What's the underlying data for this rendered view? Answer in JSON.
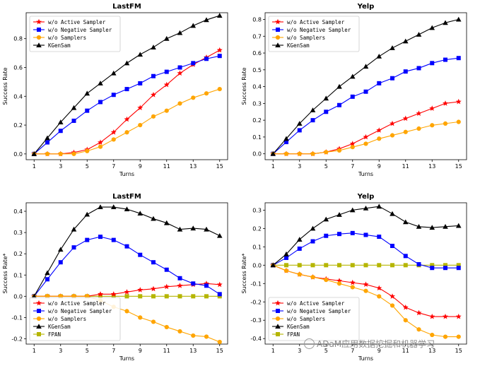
{
  "chart_data": [
    {
      "type": "line",
      "title": "LastFM",
      "xlabel": "Turns",
      "ylabel": "Success Rate",
      "xlim": [
        0.4,
        15.6
      ],
      "ylim": [
        -0.04,
        0.98
      ],
      "xticks": [
        1,
        3,
        5,
        7,
        9,
        11,
        13,
        15
      ],
      "yticks": [
        0.0,
        0.2,
        0.4,
        0.6,
        0.8
      ],
      "yticklabels": [
        "0.0",
        "0.2",
        "0.4",
        "0.6",
        "0.8"
      ],
      "legend_position": "top-left",
      "x": [
        1,
        2,
        3,
        4,
        5,
        6,
        7,
        8,
        9,
        10,
        11,
        12,
        13,
        14,
        15
      ],
      "series": [
        {
          "name": "w/o Active Sampler",
          "color": "#ff0000",
          "marker": "star",
          "values": [
            0.0,
            0.0,
            0.0,
            0.01,
            0.03,
            0.08,
            0.15,
            0.24,
            0.32,
            0.41,
            0.48,
            0.56,
            0.62,
            0.67,
            0.72
          ]
        },
        {
          "name": "w/o Negative Sampler",
          "color": "#0000ff",
          "marker": "square",
          "values": [
            0.0,
            0.08,
            0.16,
            0.23,
            0.3,
            0.36,
            0.41,
            0.45,
            0.49,
            0.54,
            0.57,
            0.6,
            0.63,
            0.66,
            0.68
          ]
        },
        {
          "name": "w/o Samplers",
          "color": "#ffa500",
          "marker": "circle",
          "values": [
            0.0,
            0.0,
            0.0,
            0.0,
            0.02,
            0.05,
            0.1,
            0.15,
            0.2,
            0.26,
            0.3,
            0.35,
            0.39,
            0.42,
            0.45
          ]
        },
        {
          "name": "KGenSam",
          "color": "#000000",
          "marker": "triangle",
          "values": [
            0.0,
            0.11,
            0.22,
            0.32,
            0.42,
            0.49,
            0.56,
            0.63,
            0.69,
            0.74,
            0.8,
            0.84,
            0.89,
            0.93,
            0.96
          ]
        }
      ]
    },
    {
      "type": "line",
      "title": "Yelp",
      "xlabel": "Turns",
      "ylabel": "Success Rate",
      "xlim": [
        0.4,
        15.6
      ],
      "ylim": [
        -0.035,
        0.84
      ],
      "xticks": [
        1,
        3,
        5,
        7,
        9,
        11,
        13,
        15
      ],
      "yticks": [
        0.0,
        0.1,
        0.2,
        0.3,
        0.4,
        0.5,
        0.6,
        0.7,
        0.8
      ],
      "yticklabels": [
        "0.0",
        "0.1",
        "0.2",
        "0.3",
        "0.4",
        "0.5",
        "0.6",
        "0.7",
        "0.8"
      ],
      "legend_position": "top-left",
      "x": [
        1,
        2,
        3,
        4,
        5,
        6,
        7,
        8,
        9,
        10,
        11,
        12,
        13,
        14,
        15
      ],
      "series": [
        {
          "name": "w/o Active Sampler",
          "color": "#ff0000",
          "marker": "star",
          "values": [
            0.0,
            0.0,
            0.0,
            0.0,
            0.01,
            0.03,
            0.06,
            0.1,
            0.14,
            0.18,
            0.21,
            0.24,
            0.27,
            0.3,
            0.31
          ]
        },
        {
          "name": "w/o Negative Sampler",
          "color": "#0000ff",
          "marker": "square",
          "values": [
            0.0,
            0.07,
            0.14,
            0.2,
            0.25,
            0.29,
            0.34,
            0.37,
            0.42,
            0.45,
            0.49,
            0.51,
            0.54,
            0.56,
            0.57
          ]
        },
        {
          "name": "w/o Samplers",
          "color": "#ffa500",
          "marker": "circle",
          "values": [
            0.0,
            0.0,
            0.0,
            0.0,
            0.01,
            0.02,
            0.04,
            0.06,
            0.09,
            0.11,
            0.13,
            0.15,
            0.17,
            0.18,
            0.19
          ]
        },
        {
          "name": "KGenSam",
          "color": "#000000",
          "marker": "triangle",
          "values": [
            0.0,
            0.09,
            0.18,
            0.26,
            0.33,
            0.4,
            0.46,
            0.52,
            0.58,
            0.63,
            0.67,
            0.71,
            0.75,
            0.78,
            0.8
          ]
        }
      ]
    },
    {
      "type": "line",
      "title": "LastFM",
      "xlabel": "Turns",
      "ylabel": "Success Rate*",
      "xlim": [
        0.4,
        15.6
      ],
      "ylim": [
        -0.225,
        0.44
      ],
      "xticks": [
        1,
        3,
        5,
        7,
        9,
        11,
        13,
        15
      ],
      "yticks": [
        -0.2,
        -0.1,
        0.0,
        0.1,
        0.2,
        0.3,
        0.4
      ],
      "yticklabels": [
        "-0.2",
        "-0.1",
        "0.0",
        "0.1",
        "0.2",
        "0.3",
        "0.4"
      ],
      "legend_position": "bottom-left",
      "x": [
        1,
        2,
        3,
        4,
        5,
        6,
        7,
        8,
        9,
        10,
        11,
        12,
        13,
        14,
        15
      ],
      "series": [
        {
          "name": "w/o Active Sampler",
          "color": "#ff0000",
          "marker": "star",
          "values": [
            0.0,
            0.0,
            0.0,
            0.0,
            0.0,
            0.01,
            0.01,
            0.02,
            0.03,
            0.035,
            0.045,
            0.05,
            0.055,
            0.06,
            0.055
          ]
        },
        {
          "name": "w/o Negative Sampler",
          "color": "#0000ff",
          "marker": "square",
          "values": [
            0.0,
            0.08,
            0.16,
            0.23,
            0.265,
            0.28,
            0.265,
            0.235,
            0.195,
            0.16,
            0.125,
            0.085,
            0.06,
            0.05,
            0.01
          ]
        },
        {
          "name": "w/o Samplers",
          "color": "#ffa500",
          "marker": "circle",
          "values": [
            0.0,
            0.0,
            0.0,
            0.0,
            0.0,
            -0.02,
            -0.05,
            -0.07,
            -0.1,
            -0.12,
            -0.145,
            -0.165,
            -0.185,
            -0.19,
            -0.215
          ]
        },
        {
          "name": "KGenSam",
          "color": "#000000",
          "marker": "triangle",
          "values": [
            0.0,
            0.11,
            0.22,
            0.315,
            0.385,
            0.42,
            0.42,
            0.41,
            0.39,
            0.365,
            0.345,
            0.315,
            0.32,
            0.315,
            0.285
          ]
        },
        {
          "name": "FPAN",
          "color": "#b5b500",
          "marker": "square",
          "values": [
            0.0,
            0.0,
            0.0,
            0.0,
            0.0,
            0.0,
            0.0,
            0.0,
            0.0,
            0.0,
            0.0,
            0.0,
            0.0,
            0.0,
            0.0
          ]
        }
      ]
    },
    {
      "type": "line",
      "title": "Yelp",
      "xlabel": "Turns",
      "ylabel": "Success Rate*",
      "xlim": [
        0.4,
        15.6
      ],
      "ylim": [
        -0.43,
        0.34
      ],
      "xticks": [
        1,
        3,
        5,
        7,
        9,
        11,
        13,
        15
      ],
      "yticks": [
        -0.4,
        -0.3,
        -0.2,
        -0.1,
        0.0,
        0.1,
        0.2,
        0.3
      ],
      "yticklabels": [
        "-0.4",
        "-0.3",
        "-0.2",
        "-0.1",
        "0.0",
        "0.1",
        "0.2",
        "0.3"
      ],
      "legend_position": "bottom-left",
      "x": [
        1,
        2,
        3,
        4,
        5,
        6,
        7,
        8,
        9,
        10,
        11,
        12,
        13,
        14,
        15
      ],
      "series": [
        {
          "name": "w/o Active Sampler",
          "color": "#ff0000",
          "marker": "star",
          "values": [
            0.0,
            -0.03,
            -0.05,
            -0.065,
            -0.075,
            -0.085,
            -0.095,
            -0.105,
            -0.125,
            -0.17,
            -0.23,
            -0.26,
            -0.28,
            -0.28,
            -0.28
          ]
        },
        {
          "name": "w/o Negative Sampler",
          "color": "#0000ff",
          "marker": "square",
          "values": [
            0.0,
            0.04,
            0.09,
            0.13,
            0.16,
            0.17,
            0.175,
            0.165,
            0.155,
            0.105,
            0.05,
            0.005,
            -0.015,
            -0.015,
            -0.015
          ]
        },
        {
          "name": "w/o Samplers",
          "color": "#ffa500",
          "marker": "circle",
          "values": [
            0.0,
            -0.03,
            -0.05,
            -0.065,
            -0.08,
            -0.1,
            -0.12,
            -0.14,
            -0.17,
            -0.22,
            -0.3,
            -0.35,
            -0.38,
            -0.39,
            -0.39
          ]
        },
        {
          "name": "KGenSam",
          "color": "#000000",
          "marker": "triangle",
          "values": [
            0.0,
            0.06,
            0.14,
            0.2,
            0.25,
            0.275,
            0.3,
            0.31,
            0.32,
            0.28,
            0.235,
            0.21,
            0.205,
            0.21,
            0.215
          ]
        },
        {
          "name": "FPAN",
          "color": "#b5b500",
          "marker": "square",
          "values": [
            0.0,
            0.0,
            0.0,
            0.0,
            0.0,
            0.0,
            0.0,
            0.0,
            0.0,
            0.0,
            0.0,
            0.0,
            0.0,
            0.0,
            0.0
          ]
        }
      ]
    }
  ],
  "watermark": "ADaM应用数据挖掘和机器学习"
}
